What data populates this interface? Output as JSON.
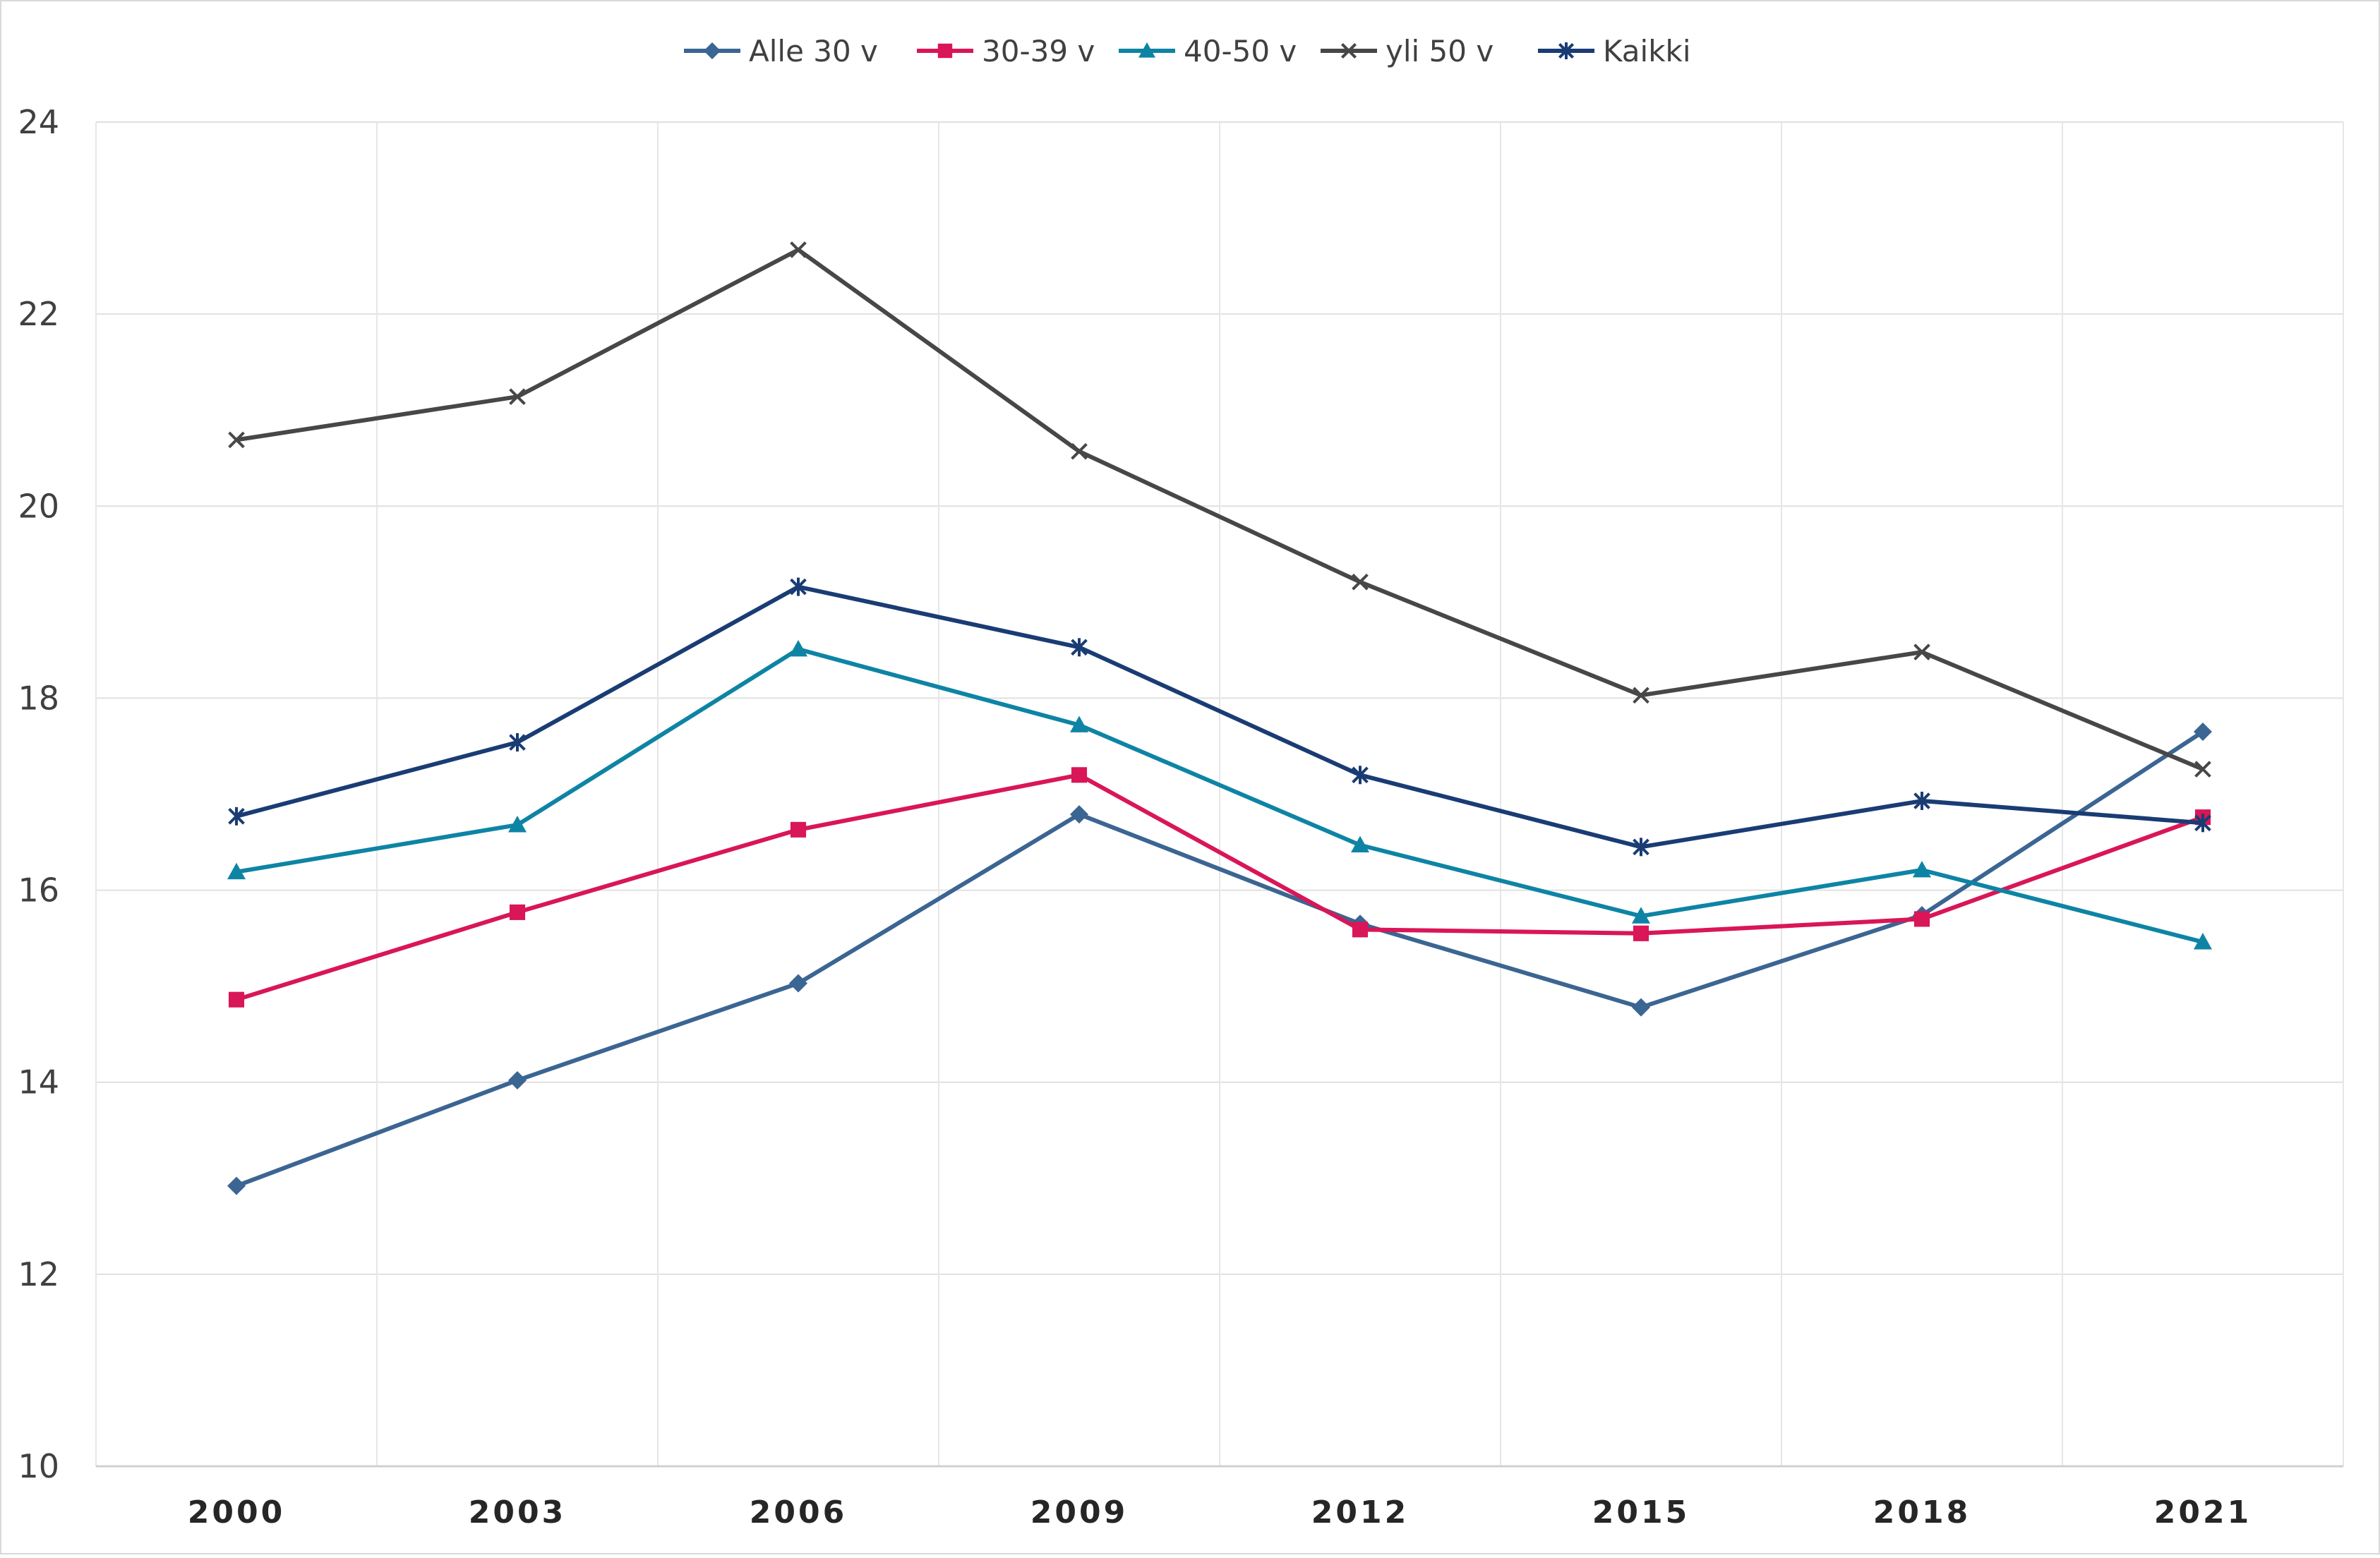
{
  "chart_data": {
    "type": "line",
    "title": "",
    "xlabel": "",
    "ylabel": "",
    "categories": [
      "2000",
      "2003",
      "2006",
      "2009",
      "2012",
      "2015",
      "2018",
      "2021"
    ],
    "y_ticks": [
      "10",
      "12",
      "14",
      "16",
      "18",
      "20",
      "22",
      "24"
    ],
    "ylim": [
      10,
      24
    ],
    "grid": true,
    "legend_position": "top-center",
    "series": [
      {
        "name": "Alle 30 v",
        "color": "#3B6592",
        "marker": "diamond",
        "values": [
          12.92,
          14.02,
          15.03,
          16.79,
          15.65,
          14.78,
          15.74,
          17.65
        ]
      },
      {
        "name": "30-39 v",
        "color": "#D91657",
        "marker": "square",
        "values": [
          14.86,
          15.77,
          16.63,
          17.2,
          15.59,
          15.55,
          15.7,
          16.76
        ]
      },
      {
        "name": "40-50 v",
        "color": "#0E84A5",
        "marker": "triangle",
        "values": [
          16.19,
          16.68,
          18.51,
          17.72,
          16.47,
          15.73,
          16.21,
          15.46
        ]
      },
      {
        "name": "yli 50 v",
        "color": "#474747",
        "marker": "x",
        "values": [
          20.69,
          21.14,
          22.67,
          20.57,
          19.21,
          18.03,
          18.48,
          17.26
        ]
      },
      {
        "name": "Kaikki",
        "color": "#1A3C74",
        "marker": "star",
        "values": [
          16.77,
          17.54,
          19.16,
          18.53,
          17.2,
          16.45,
          16.93,
          16.7
        ]
      }
    ]
  }
}
